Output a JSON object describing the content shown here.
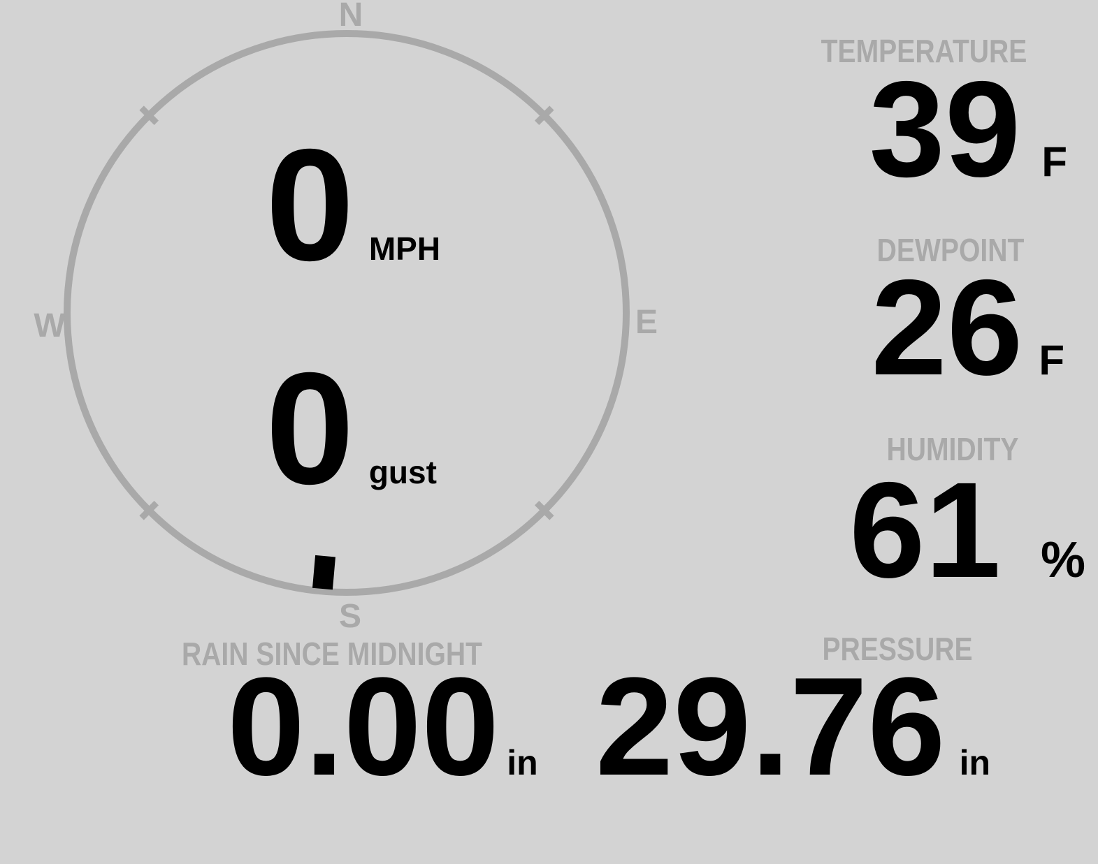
{
  "colors": {
    "background": "#d3d3d3",
    "muted": "#a9a9a9",
    "ink": "#000000"
  },
  "wind": {
    "speed_value": "0",
    "speed_unit": "MPH",
    "gust_value": "0",
    "gust_unit": "gust",
    "direction_deg": 185,
    "compass": {
      "north": "N",
      "east": "E",
      "south": "S",
      "west": "W"
    }
  },
  "cells": {
    "temperature": {
      "label": "TEMPERATURE",
      "value": "39",
      "unit": "F"
    },
    "dewpoint": {
      "label": "DEWPOINT",
      "value": "26",
      "unit": "F"
    },
    "humidity": {
      "label": "HUMIDITY",
      "value": "61",
      "unit": "%"
    },
    "rain": {
      "label": "RAIN SINCE MIDNIGHT",
      "value": "0.00",
      "unit": "in"
    },
    "pressure": {
      "label": "PRESSURE",
      "value": "29.76",
      "unit": "in"
    }
  }
}
